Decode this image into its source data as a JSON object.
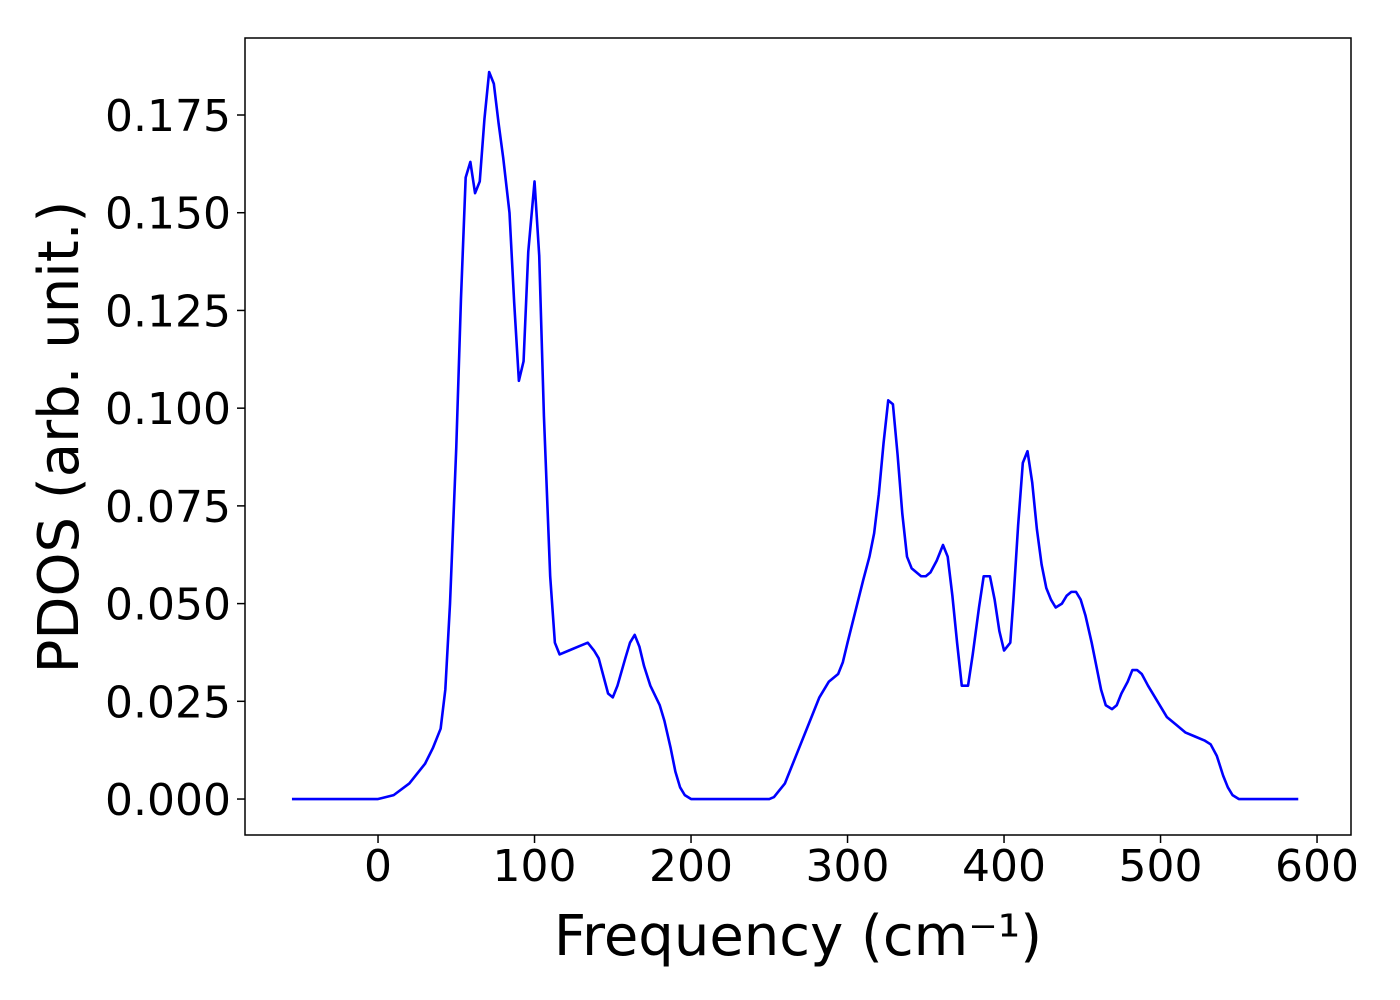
{
  "chart_data": {
    "type": "line",
    "xlabel": "Frequency (cm⁻¹)",
    "ylabel": "PDOS (arb. unit.)",
    "x": [
      -55,
      -40,
      -20,
      0,
      10,
      20,
      30,
      35,
      40,
      43,
      46,
      50,
      53,
      56,
      59,
      62,
      65,
      68,
      71,
      74,
      77,
      80,
      84,
      87,
      90,
      93,
      96,
      100,
      103,
      106,
      110,
      113,
      116,
      122,
      128,
      134,
      138,
      141,
      147,
      150,
      153,
      158,
      161,
      164,
      167,
      170,
      174,
      180,
      183,
      187,
      190,
      193,
      196,
      200,
      250,
      253,
      256,
      260,
      264,
      270,
      276,
      282,
      288,
      294,
      297,
      300,
      305,
      310,
      314,
      317,
      320,
      323,
      326,
      329,
      332,
      335,
      338,
      341,
      347,
      350,
      353,
      357,
      361,
      364,
      367,
      370,
      373,
      377,
      380,
      384,
      387,
      391,
      394,
      397,
      400,
      404,
      406,
      409,
      412,
      415,
      418,
      421,
      424,
      427,
      430,
      433,
      437,
      440,
      443,
      446,
      449,
      452,
      456,
      459,
      462,
      465,
      469,
      472,
      475,
      479,
      482,
      485,
      488,
      492,
      498,
      504,
      510,
      516,
      522,
      528,
      532,
      536,
      540,
      543,
      546,
      550,
      588
    ],
    "series": [
      {
        "color": "#0000ff",
        "values": [
          0,
          0,
          0,
          0,
          0.001,
          0.004,
          0.009,
          0.013,
          0.018,
          0.028,
          0.05,
          0.09,
          0.128,
          0.159,
          0.163,
          0.155,
          0.158,
          0.174,
          0.186,
          0.183,
          0.173,
          0.164,
          0.15,
          0.127,
          0.107,
          0.112,
          0.14,
          0.158,
          0.139,
          0.098,
          0.057,
          0.04,
          0.037,
          0.038,
          0.039,
          0.04,
          0.038,
          0.036,
          0.027,
          0.026,
          0.029,
          0.036,
          0.04,
          0.042,
          0.039,
          0.034,
          0.029,
          0.024,
          0.02,
          0.013,
          0.007,
          0.003,
          0.001,
          0,
          0,
          0.0005,
          0.002,
          0.004,
          0.008,
          0.014,
          0.02,
          0.026,
          0.03,
          0.032,
          0.035,
          0.04,
          0.048,
          0.056,
          0.062,
          0.068,
          0.078,
          0.091,
          0.102,
          0.101,
          0.088,
          0.073,
          0.062,
          0.059,
          0.057,
          0.057,
          0.058,
          0.061,
          0.065,
          0.062,
          0.052,
          0.04,
          0.029,
          0.029,
          0.037,
          0.049,
          0.057,
          0.057,
          0.051,
          0.043,
          0.038,
          0.04,
          0.051,
          0.07,
          0.086,
          0.089,
          0.081,
          0.069,
          0.06,
          0.054,
          0.051,
          0.049,
          0.05,
          0.052,
          0.053,
          0.053,
          0.051,
          0.047,
          0.04,
          0.034,
          0.028,
          0.024,
          0.023,
          0.024,
          0.027,
          0.03,
          0.033,
          0.033,
          0.032,
          0.029,
          0.025,
          0.021,
          0.019,
          0.017,
          0.016,
          0.015,
          0.014,
          0.011,
          0.006,
          0.003,
          0.001,
          0,
          0
        ]
      }
    ],
    "xlim": [
      -85,
      621.7
    ],
    "ylim": [
      -0.0092,
      0.1947
    ],
    "xticks": [
      0,
      100,
      200,
      300,
      400,
      500,
      600
    ],
    "yticks": [
      {
        "value": 0,
        "label": "0.000"
      },
      0.025,
      {
        "value": 0.05,
        "label": "0.050"
      },
      0.075,
      {
        "value": 0.1,
        "label": "0.100"
      },
      0.125,
      {
        "value": 0.15,
        "label": "0.150"
      },
      0.175
    ]
  }
}
